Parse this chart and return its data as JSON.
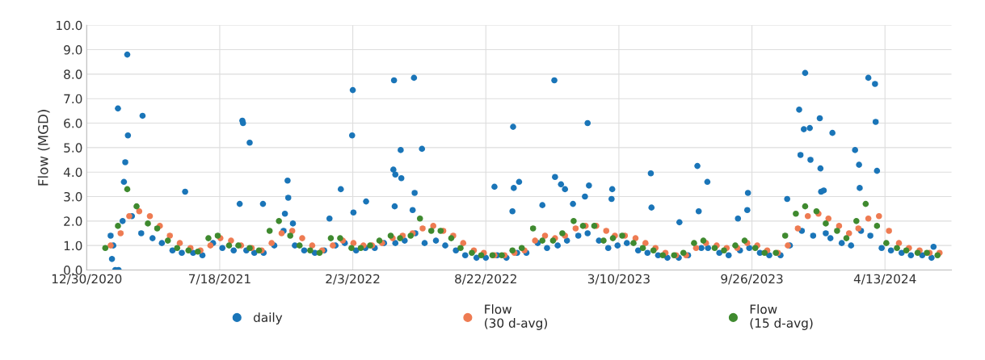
{
  "chart_data": {
    "type": "scatter",
    "ylabel": "Flow (MGD)",
    "xlim": [
      "2020-12-30",
      "2024-07-22"
    ],
    "xticks": [
      {
        "value": "2020-12-30",
        "label": "12/30/2020"
      },
      {
        "value": "2021-07-18",
        "label": "7/18/2021"
      },
      {
        "value": "2022-02-03",
        "label": "2/3/2022"
      },
      {
        "value": "2022-08-22",
        "label": "8/22/2022"
      },
      {
        "value": "2023-03-10",
        "label": "3/10/2023"
      },
      {
        "value": "2023-09-26",
        "label": "9/26/2023"
      },
      {
        "value": "2024-04-13",
        "label": "4/13/2024"
      }
    ],
    "ylim": [
      0,
      10
    ],
    "yticks": [
      {
        "value": 0,
        "label": "0.0"
      },
      {
        "value": 1,
        "label": "1.0"
      },
      {
        "value": 2,
        "label": "2.0"
      },
      {
        "value": 3,
        "label": "3.0"
      },
      {
        "value": 4,
        "label": "4.0"
      },
      {
        "value": 5,
        "label": "5.0"
      },
      {
        "value": 6,
        "label": "6.0"
      },
      {
        "value": 7,
        "label": "7.0"
      },
      {
        "value": 8,
        "label": "8.0"
      },
      {
        "value": 9,
        "label": "9.0"
      },
      {
        "value": 10,
        "label": "10.0"
      }
    ],
    "grid": true,
    "legend": "bottom",
    "marker": "circle",
    "series": [
      {
        "name": "daily",
        "color": "#1a75b8",
        "x": [
          "2021-02-08",
          "2021-02-22",
          "2021-03-08",
          "2021-03-22",
          "2021-04-08",
          "2021-04-22",
          "2021-05-08",
          "2021-05-22",
          "2021-06-08",
          "2021-06-22",
          "2021-07-08",
          "2021-07-22",
          "2021-08-08",
          "2021-08-27",
          "2021-09-08",
          "2021-09-22",
          "2021-10-08",
          "2021-10-22",
          "2021-11-08",
          "2021-11-22",
          "2021-12-08",
          "2021-12-22",
          "2022-01-08",
          "2022-01-22",
          "2022-02-08",
          "2022-02-22",
          "2022-03-08",
          "2022-03-22",
          "2022-04-08",
          "2022-04-22",
          "2022-05-08",
          "2022-05-22",
          "2022-06-08",
          "2022-06-22",
          "2022-07-08",
          "2022-07-22",
          "2022-08-08",
          "2022-08-22",
          "2022-09-08",
          "2022-09-22",
          "2022-10-08",
          "2022-10-22",
          "2022-11-08",
          "2022-11-22",
          "2022-12-08",
          "2022-12-22",
          "2023-01-08",
          "2023-01-22",
          "2023-02-08",
          "2023-02-22",
          "2023-03-08",
          "2023-03-22",
          "2023-04-08",
          "2023-04-22",
          "2023-05-08",
          "2023-05-22",
          "2023-06-08",
          "2023-06-22",
          "2023-07-12",
          "2023-07-22",
          "2023-08-08",
          "2023-08-22",
          "2023-09-08",
          "2023-09-22",
          "2023-10-08",
          "2023-10-22",
          "2023-11-08",
          "2023-11-22",
          "2023-12-10",
          "2023-12-27",
          "2024-01-15",
          "2024-01-22",
          "2024-02-08",
          "2024-02-22",
          "2024-03-08",
          "2024-03-22",
          "2024-04-08",
          "2024-04-22",
          "2024-05-08",
          "2024-05-22",
          "2024-06-08",
          "2024-06-22",
          "2021-03-01",
          "2021-02-15",
          "2021-03-24",
          "2021-03-02",
          "2021-02-26",
          "2021-02-24",
          "2021-02-11",
          "2021-02-16",
          "2021-02-06",
          "2021-02-04",
          "2021-05-27",
          "2021-08-21",
          "2021-08-22",
          "2021-09-01",
          "2021-08-17",
          "2021-09-21",
          "2021-10-28",
          "2021-10-29",
          "2021-10-24",
          "2021-11-05",
          "2021-12-30",
          "2022-02-03",
          "2022-02-02",
          "2022-04-06",
          "2022-05-06",
          "2022-04-16",
          "2022-05-18",
          "2022-04-05",
          "2022-04-08",
          "2022-04-17",
          "2022-05-07",
          "2022-01-16",
          "2022-02-23",
          "2022-02-04",
          "2022-04-07",
          "2022-05-04",
          "2022-12-03",
          "2022-10-02",
          "2023-01-22",
          "2022-09-04",
          "2022-10-03",
          "2022-10-11",
          "2022-12-04",
          "2022-12-13",
          "2022-12-19",
          "2023-01-24",
          "2023-01-18",
          "2023-02-28",
          "2023-02-27",
          "2023-04-27",
          "2023-04-28",
          "2022-11-15",
          "2022-10-01",
          "2022-12-31",
          "2023-07-06",
          "2023-07-21",
          "2023-07-08",
          "2023-06-09",
          "2023-09-20",
          "2023-09-19",
          "2023-09-05",
          "2023-12-15",
          "2023-12-06",
          "2023-12-13",
          "2023-12-22",
          "2024-01-06",
          "2024-01-25",
          "2023-12-08",
          "2023-12-23",
          "2024-01-07",
          "2024-02-28",
          "2024-03-05",
          "2024-03-06",
          "2024-03-19",
          "2024-03-29",
          "2024-03-30",
          "2024-04-01",
          "2024-01-08",
          "2024-01-12",
          "2023-11-18",
          "2024-06-25"
        ],
        "values": [
          1.0,
          2.0,
          2.2,
          1.5,
          1.3,
          1.1,
          0.8,
          0.7,
          0.7,
          0.6,
          1.1,
          0.9,
          0.8,
          0.8,
          0.7,
          0.7,
          1.0,
          1.6,
          1.0,
          0.8,
          0.7,
          0.8,
          1.0,
          1.1,
          0.8,
          0.9,
          0.9,
          1.1,
          1.1,
          1.2,
          1.5,
          1.1,
          1.2,
          1.0,
          0.8,
          0.6,
          0.5,
          0.5,
          0.6,
          0.5,
          0.7,
          0.7,
          1.1,
          0.9,
          1.0,
          1.2,
          1.4,
          1.5,
          1.2,
          0.9,
          1.0,
          1.1,
          0.8,
          0.7,
          0.6,
          0.5,
          0.5,
          0.6,
          0.9,
          0.9,
          0.7,
          0.6,
          0.8,
          0.9,
          0.7,
          0.6,
          0.6,
          1.0,
          1.6,
          1.4,
          1.5,
          1.3,
          1.1,
          1.0,
          1.6,
          1.4,
          0.9,
          0.8,
          0.7,
          0.6,
          0.6,
          0.5,
          8.8,
          6.6,
          6.3,
          5.5,
          4.4,
          3.6,
          0.0,
          0.0,
          0.45,
          1.4,
          3.2,
          6.1,
          6.0,
          5.2,
          2.7,
          2.7,
          3.65,
          2.95,
          2.3,
          1.9,
          2.1,
          7.35,
          5.5,
          7.75,
          7.85,
          4.9,
          4.95,
          4.1,
          3.9,
          3.75,
          3.15,
          3.3,
          2.8,
          2.35,
          2.6,
          2.45,
          7.75,
          5.85,
          6.0,
          3.4,
          3.35,
          3.6,
          3.8,
          3.5,
          3.3,
          3.45,
          3.0,
          3.3,
          2.9,
          3.95,
          2.55,
          2.65,
          2.4,
          2.7,
          4.25,
          3.6,
          2.4,
          1.95,
          3.15,
          2.45,
          2.1,
          8.05,
          6.55,
          5.75,
          5.8,
          6.2,
          5.6,
          4.7,
          4.5,
          4.15,
          4.9,
          4.3,
          3.35,
          7.85,
          7.6,
          6.05,
          4.05,
          3.2,
          3.25,
          2.9,
          0.95
        ]
      },
      {
        "name": "Flow\n(30 d-avg)",
        "color": "#ee7b52",
        "x": [
          "2021-02-04",
          "2021-02-19",
          "2021-03-04",
          "2021-03-19",
          "2021-04-04",
          "2021-04-19",
          "2021-05-04",
          "2021-05-19",
          "2021-06-04",
          "2021-06-19",
          "2021-07-04",
          "2021-07-19",
          "2021-08-04",
          "2021-08-19",
          "2021-09-04",
          "2021-09-19",
          "2021-10-04",
          "2021-10-19",
          "2021-11-04",
          "2021-11-19",
          "2021-12-04",
          "2021-12-19",
          "2022-01-04",
          "2022-01-19",
          "2022-02-04",
          "2022-02-19",
          "2022-03-04",
          "2022-03-19",
          "2022-04-04",
          "2022-04-19",
          "2022-05-04",
          "2022-05-19",
          "2022-06-04",
          "2022-06-19",
          "2022-07-04",
          "2022-07-19",
          "2022-08-04",
          "2022-08-19",
          "2022-09-04",
          "2022-09-19",
          "2022-10-04",
          "2022-10-19",
          "2022-11-04",
          "2022-11-19",
          "2022-12-04",
          "2022-12-19",
          "2023-01-04",
          "2023-01-19",
          "2023-02-04",
          "2023-02-19",
          "2023-03-04",
          "2023-03-19",
          "2023-04-04",
          "2023-04-19",
          "2023-05-04",
          "2023-05-19",
          "2023-06-04",
          "2023-06-19",
          "2023-07-04",
          "2023-07-19",
          "2023-08-04",
          "2023-08-19",
          "2023-09-04",
          "2023-09-19",
          "2023-10-04",
          "2023-10-19",
          "2023-11-04",
          "2023-11-19",
          "2023-12-04",
          "2023-12-19",
          "2024-01-04",
          "2024-01-19",
          "2024-02-04",
          "2024-02-19",
          "2024-03-04",
          "2024-03-19",
          "2024-04-04",
          "2024-04-19",
          "2024-05-04",
          "2024-05-19",
          "2024-06-04",
          "2024-06-19",
          "2024-07-04"
        ],
        "values": [
          1.0,
          1.5,
          2.2,
          2.4,
          2.2,
          1.8,
          1.4,
          1.1,
          0.9,
          0.8,
          1.0,
          1.3,
          1.2,
          1.0,
          0.9,
          0.8,
          1.1,
          1.5,
          1.6,
          1.3,
          1.0,
          0.8,
          1.0,
          1.2,
          1.1,
          1.0,
          1.0,
          1.1,
          1.3,
          1.4,
          1.5,
          1.7,
          1.8,
          1.6,
          1.4,
          1.1,
          0.8,
          0.7,
          0.6,
          0.6,
          0.7,
          0.8,
          1.2,
          1.4,
          1.3,
          1.4,
          1.7,
          1.8,
          1.8,
          1.6,
          1.4,
          1.4,
          1.3,
          1.1,
          0.9,
          0.7,
          0.6,
          0.6,
          0.9,
          1.1,
          1.0,
          0.9,
          0.9,
          1.1,
          1.0,
          0.8,
          0.7,
          1.0,
          1.7,
          2.2,
          2.3,
          2.1,
          1.8,
          1.5,
          1.7,
          2.1,
          2.2,
          1.6,
          1.1,
          0.9,
          0.8,
          0.7,
          0.7
        ]
      },
      {
        "name": "Flow\n(15 d-avg)",
        "color": "#3f8a2f",
        "x": [
          "2021-01-27",
          "2021-02-15",
          "2021-03-01",
          "2021-03-15",
          "2021-04-01",
          "2021-04-15",
          "2021-05-01",
          "2021-05-15",
          "2021-06-01",
          "2021-06-15",
          "2021-07-01",
          "2021-07-15",
          "2021-08-01",
          "2021-08-15",
          "2021-09-01",
          "2021-09-15",
          "2021-10-01",
          "2021-10-15",
          "2021-11-01",
          "2021-11-15",
          "2021-12-01",
          "2021-12-15",
          "2022-01-01",
          "2022-01-15",
          "2022-02-01",
          "2022-02-15",
          "2022-03-01",
          "2022-03-15",
          "2022-04-01",
          "2022-04-15",
          "2022-05-01",
          "2022-05-15",
          "2022-06-01",
          "2022-06-15",
          "2022-07-01",
          "2022-07-15",
          "2022-08-01",
          "2022-08-15",
          "2022-09-01",
          "2022-09-15",
          "2022-10-01",
          "2022-10-15",
          "2022-11-01",
          "2022-11-15",
          "2022-12-01",
          "2022-12-15",
          "2023-01-01",
          "2023-01-15",
          "2023-02-01",
          "2023-02-15",
          "2023-03-01",
          "2023-03-15",
          "2023-04-01",
          "2023-04-15",
          "2023-05-01",
          "2023-05-15",
          "2023-06-01",
          "2023-06-15",
          "2023-07-01",
          "2023-07-15",
          "2023-08-01",
          "2023-08-15",
          "2023-09-01",
          "2023-09-15",
          "2023-10-01",
          "2023-10-15",
          "2023-11-01",
          "2023-11-15",
          "2023-12-01",
          "2023-12-15",
          "2024-01-01",
          "2024-01-15",
          "2024-02-01",
          "2024-02-15",
          "2024-03-01",
          "2024-03-15",
          "2024-04-01",
          "2024-04-15",
          "2024-05-01",
          "2024-05-15",
          "2024-06-01",
          "2024-06-15",
          "2024-07-01"
        ],
        "values": [
          0.9,
          1.8,
          3.3,
          2.6,
          1.9,
          1.7,
          1.2,
          0.9,
          0.8,
          0.75,
          1.3,
          1.4,
          1.0,
          1.0,
          0.9,
          0.8,
          1.6,
          2.0,
          1.4,
          1.0,
          0.8,
          0.7,
          1.3,
          1.3,
          0.9,
          0.9,
          1.0,
          1.2,
          1.4,
          1.3,
          1.4,
          2.1,
          1.6,
          1.6,
          1.3,
          0.9,
          0.7,
          0.6,
          0.6,
          0.6,
          0.8,
          0.9,
          1.7,
          1.2,
          1.2,
          1.5,
          2.0,
          1.8,
          1.8,
          1.2,
          1.3,
          1.4,
          1.1,
          0.9,
          0.8,
          0.6,
          0.6,
          0.7,
          1.1,
          1.2,
          0.9,
          0.8,
          1.0,
          1.2,
          0.9,
          0.7,
          0.7,
          1.4,
          2.3,
          2.6,
          2.4,
          1.9,
          1.6,
          1.3,
          2.0,
          2.7,
          1.8,
          1.1,
          0.9,
          0.8,
          0.7,
          0.7,
          0.6
        ]
      }
    ]
  }
}
